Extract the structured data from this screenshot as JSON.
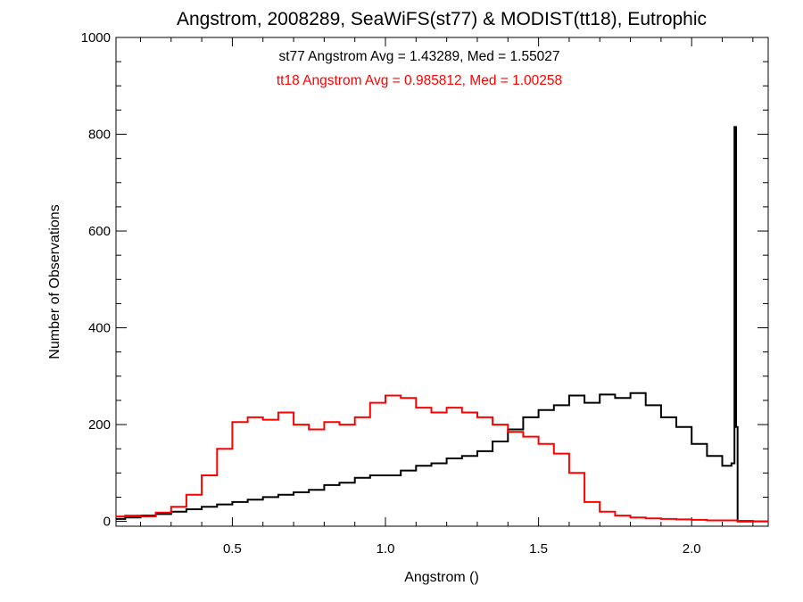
{
  "chart_data": {
    "type": "line",
    "title": "Angstrom, 2008289, SeaWiFS(st77) & MODIST(tt18), Eutrophic",
    "xlabel": "Angstrom ()",
    "ylabel": "Number of Observations",
    "xlim": [
      0.12,
      2.25
    ],
    "ylim": [
      -10,
      1000
    ],
    "x_ticks": [
      0.5,
      1.0,
      1.5,
      2.0
    ],
    "x_tick_labels": [
      "0.5",
      "1.0",
      "1.5",
      "2.0"
    ],
    "y_ticks": [
      0,
      200,
      400,
      600,
      800,
      1000
    ],
    "y_tick_labels": [
      "0",
      "200",
      "400",
      "600",
      "800",
      "1000"
    ],
    "grid": false,
    "annotations": [
      {
        "text": "st77 Angstrom Avg = 1.43289, Med = 1.55027",
        "color": "#000000"
      },
      {
        "text": "tt18 Angstrom Avg = 0.985812, Med = 1.00258",
        "color": "#ff0000"
      }
    ],
    "series": [
      {
        "color": "#000000",
        "x": [
          0.12,
          0.15,
          0.2,
          0.25,
          0.3,
          0.35,
          0.4,
          0.45,
          0.5,
          0.55,
          0.6,
          0.65,
          0.7,
          0.75,
          0.8,
          0.85,
          0.9,
          0.95,
          1.0,
          1.05,
          1.1,
          1.15,
          1.2,
          1.25,
          1.3,
          1.35,
          1.4,
          1.45,
          1.5,
          1.55,
          1.6,
          1.65,
          1.7,
          1.75,
          1.8,
          1.85,
          1.9,
          1.95,
          2.0,
          2.05,
          2.1,
          2.13,
          2.14,
          2.145,
          2.15,
          2.155,
          2.16,
          2.2,
          2.25
        ],
        "y": [
          5,
          8,
          12,
          15,
          20,
          25,
          30,
          35,
          40,
          45,
          50,
          55,
          60,
          65,
          75,
          80,
          90,
          95,
          95,
          105,
          115,
          120,
          130,
          135,
          145,
          165,
          190,
          215,
          230,
          240,
          260,
          245,
          262,
          255,
          265,
          240,
          215,
          195,
          160,
          135,
          115,
          120,
          815,
          195,
          0,
          0,
          0,
          0,
          0
        ]
      },
      {
        "color": "#ff0000",
        "x": [
          0.12,
          0.15,
          0.2,
          0.25,
          0.3,
          0.35,
          0.4,
          0.45,
          0.5,
          0.55,
          0.6,
          0.65,
          0.7,
          0.75,
          0.8,
          0.85,
          0.9,
          0.95,
          1.0,
          1.05,
          1.1,
          1.15,
          1.2,
          1.25,
          1.3,
          1.35,
          1.4,
          1.45,
          1.5,
          1.55,
          1.6,
          1.65,
          1.7,
          1.75,
          1.8,
          1.85,
          1.9,
          1.95,
          2.0,
          2.05,
          2.1,
          2.15,
          2.2,
          2.25
        ],
        "y": [
          10,
          12,
          10,
          18,
          30,
          55,
          95,
          150,
          205,
          215,
          210,
          225,
          200,
          190,
          205,
          200,
          215,
          245,
          260,
          255,
          235,
          225,
          235,
          225,
          215,
          200,
          185,
          175,
          160,
          140,
          100,
          40,
          20,
          12,
          8,
          6,
          5,
          4,
          3,
          2,
          2,
          1,
          0,
          0
        ]
      }
    ]
  }
}
